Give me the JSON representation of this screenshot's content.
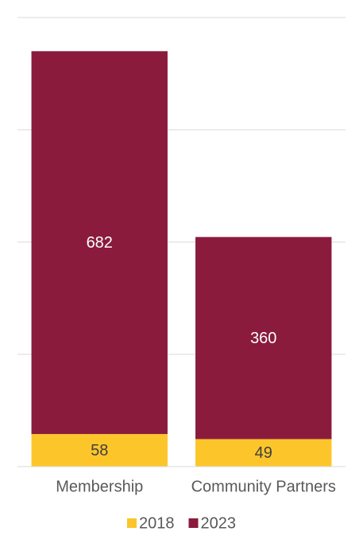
{
  "chart_data": {
    "type": "stacked_bar",
    "categories": [
      "Membership",
      "Community Partners"
    ],
    "series": [
      {
        "name": "2018",
        "color": "#fcc62a",
        "values": [
          58,
          49
        ]
      },
      {
        "name": "2023",
        "color": "#8a1b3d",
        "values": [
          682,
          360
        ]
      }
    ],
    "ylim": [
      0,
      800
    ],
    "yticks": [
      0,
      200,
      400,
      600,
      800
    ],
    "grid": true,
    "legend": "bottom"
  }
}
